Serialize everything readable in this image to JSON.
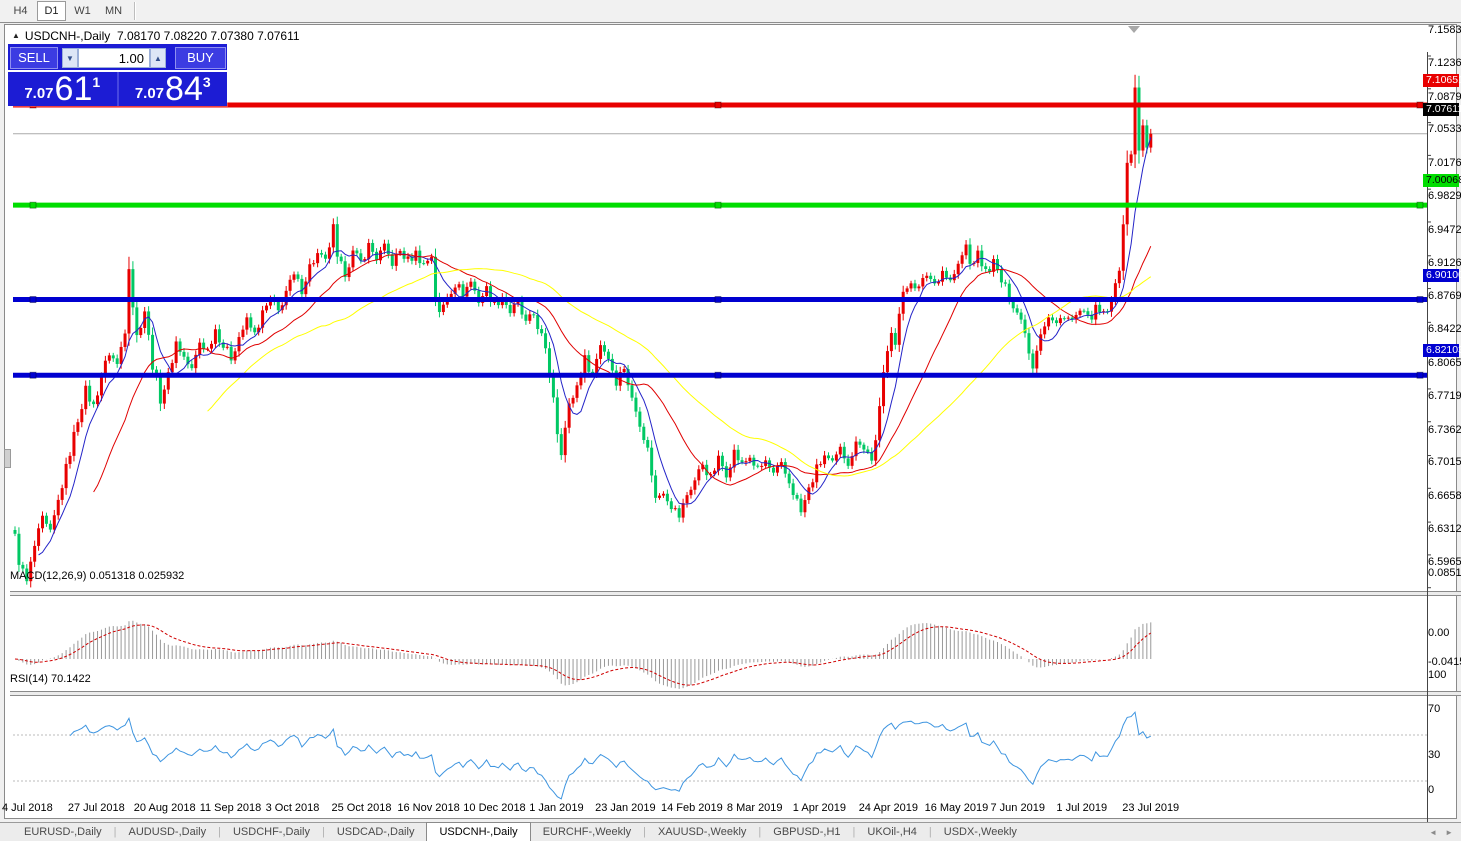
{
  "toolbar": {
    "periods": [
      {
        "label": "H4",
        "active": false
      },
      {
        "label": "D1",
        "active": true
      },
      {
        "label": "W1",
        "active": false
      },
      {
        "label": "MN",
        "active": false
      }
    ]
  },
  "chart": {
    "title": {
      "symbol": "USDCNH-,Daily",
      "quotes": "7.08170 7.08220 7.07380 7.07611"
    },
    "trade_panel": {
      "sell_label": "SELL",
      "buy_label": "BUY",
      "volume": "1.00",
      "sell_price_small": "7.07",
      "sell_price_big": "61",
      "sell_price_sup": "1",
      "buy_price_small": "7.07",
      "buy_price_big": "84",
      "buy_price_sup": "3"
    }
  },
  "chart_data": {
    "type": "candlestick",
    "symbol": "USDCNH",
    "timeframe": "Daily",
    "current_bar_ohlc": {
      "open": 7.0817,
      "high": 7.0822,
      "low": 7.0738,
      "close": 7.07611
    },
    "price_axis_ticks": [
      "7.15830",
      "7.12365",
      "7.08795",
      "7.05330",
      "7.01760",
      "6.98295",
      "6.94725",
      "6.91260",
      "6.87690",
      "6.84225",
      "6.80655",
      "6.77190",
      "6.73620",
      "6.70155",
      "6.66585",
      "6.63120",
      "6.59655"
    ],
    "hlines": [
      {
        "value": 7.10651,
        "label": "7.10651",
        "color": "#e80000",
        "label_fg": "#ffffff",
        "width": 5
      },
      {
        "value": 7.00068,
        "label": "7.00068",
        "color": "#00dd00",
        "label_fg": "#000000",
        "width": 5
      },
      {
        "value": 6.901,
        "label": "6.90100",
        "color": "#0000d0",
        "label_fg": "#ffffff",
        "width": 5
      },
      {
        "value": 6.82103,
        "label": "6.82103",
        "color": "#0000d0",
        "label_fg": "#ffffff",
        "width": 5
      }
    ],
    "current_price": {
      "value": 7.07611,
      "label": "7.07611",
      "line_color": "#aaaaaa",
      "chip_bg": "#000000",
      "chip_fg": "#ffffff"
    },
    "date_axis": [
      "4 Jul 2018",
      "27 Jul 2018",
      "20 Aug 2018",
      "11 Sep 2018",
      "3 Oct 2018",
      "25 Oct 2018",
      "16 Nov 2018",
      "10 Dec 2018",
      "1 Jan 2019",
      "23 Jan 2019",
      "14 Feb 2019",
      "8 Mar 2019",
      "1 Apr 2019",
      "24 Apr 2019",
      "16 May 2019",
      "7 Jun 2019",
      "1 Jul 2019",
      "23 Jul 2019"
    ],
    "bars_total": 290,
    "price_path_anchors": [
      [
        0,
        6.65
      ],
      [
        1,
        6.625
      ],
      [
        3,
        6.602
      ],
      [
        5,
        6.64
      ],
      [
        7,
        6.668
      ],
      [
        9,
        6.653
      ],
      [
        12,
        6.705
      ],
      [
        14,
        6.74
      ],
      [
        16,
        6.775
      ],
      [
        18,
        6.805
      ],
      [
        20,
        6.788
      ],
      [
        22,
        6.82
      ],
      [
        24,
        6.845
      ],
      [
        26,
        6.832
      ],
      [
        28,
        6.87
      ],
      [
        29,
        6.938
      ],
      [
        30,
        6.895
      ],
      [
        31,
        6.862
      ],
      [
        33,
        6.89
      ],
      [
        35,
        6.832
      ],
      [
        37,
        6.796
      ],
      [
        39,
        6.82
      ],
      [
        41,
        6.856
      ],
      [
        43,
        6.84
      ],
      [
        45,
        6.826
      ],
      [
        47,
        6.856
      ],
      [
        49,
        6.848
      ],
      [
        51,
        6.87
      ],
      [
        53,
        6.852
      ],
      [
        55,
        6.84
      ],
      [
        57,
        6.862
      ],
      [
        59,
        6.878
      ],
      [
        61,
        6.864
      ],
      [
        63,
        6.886
      ],
      [
        65,
        6.9
      ],
      [
        67,
        6.888
      ],
      [
        69,
        6.91
      ],
      [
        71,
        6.925
      ],
      [
        73,
        6.912
      ],
      [
        75,
        6.936
      ],
      [
        77,
        6.948
      ],
      [
        79,
        6.94
      ],
      [
        81,
        6.976
      ],
      [
        82,
        6.942
      ],
      [
        84,
        6.93
      ],
      [
        86,
        6.95
      ],
      [
        88,
        6.94
      ],
      [
        90,
        6.958
      ],
      [
        92,
        6.945
      ],
      [
        94,
        6.955
      ],
      [
        96,
        6.94
      ],
      [
        98,
        6.952
      ],
      [
        100,
        6.942
      ],
      [
        102,
        6.95
      ],
      [
        104,
        6.938
      ],
      [
        106,
        6.948
      ],
      [
        107,
        6.905
      ],
      [
        108,
        6.885
      ],
      [
        110,
        6.905
      ],
      [
        112,
        6.918
      ],
      [
        114,
        6.908
      ],
      [
        116,
        6.92
      ],
      [
        118,
        6.9
      ],
      [
        120,
        6.912
      ],
      [
        122,
        6.895
      ],
      [
        124,
        6.905
      ],
      [
        126,
        6.888
      ],
      [
        128,
        6.896
      ],
      [
        130,
        6.875
      ],
      [
        132,
        6.885
      ],
      [
        134,
        6.862
      ],
      [
        135,
        6.845
      ],
      [
        137,
        6.8
      ],
      [
        138,
        6.762
      ],
      [
        139,
        6.742
      ],
      [
        141,
        6.788
      ],
      [
        143,
        6.81
      ],
      [
        145,
        6.838
      ],
      [
        147,
        6.822
      ],
      [
        149,
        6.855
      ],
      [
        151,
        6.84
      ],
      [
        153,
        6.815
      ],
      [
        155,
        6.83
      ],
      [
        157,
        6.795
      ],
      [
        159,
        6.772
      ],
      [
        161,
        6.742
      ],
      [
        162,
        6.718
      ],
      [
        163,
        6.69
      ],
      [
        165,
        6.7
      ],
      [
        167,
        6.684
      ],
      [
        169,
        6.672
      ],
      [
        171,
        6.695
      ],
      [
        173,
        6.71
      ],
      [
        175,
        6.728
      ],
      [
        177,
        6.712
      ],
      [
        179,
        6.732
      ],
      [
        181,
        6.718
      ],
      [
        183,
        6.74
      ],
      [
        185,
        6.726
      ],
      [
        187,
        6.735
      ],
      [
        189,
        6.72
      ],
      [
        191,
        6.73
      ],
      [
        193,
        6.715
      ],
      [
        195,
        6.725
      ],
      [
        197,
        6.708
      ],
      [
        199,
        6.688
      ],
      [
        200,
        6.676
      ],
      [
        202,
        6.7
      ],
      [
        204,
        6.722
      ],
      [
        206,
        6.736
      ],
      [
        208,
        6.726
      ],
      [
        210,
        6.742
      ],
      [
        212,
        6.73
      ],
      [
        214,
        6.748
      ],
      [
        215,
        6.752
      ],
      [
        217,
        6.74
      ],
      [
        218,
        6.73
      ],
      [
        219,
        6.755
      ],
      [
        220,
        6.785
      ],
      [
        221,
        6.82
      ],
      [
        222,
        6.845
      ],
      [
        223,
        6.87
      ],
      [
        224,
        6.858
      ],
      [
        225,
        6.886
      ],
      [
        226,
        6.905
      ],
      [
        228,
        6.922
      ],
      [
        230,
        6.912
      ],
      [
        232,
        6.928
      ],
      [
        234,
        6.918
      ],
      [
        236,
        6.932
      ],
      [
        238,
        6.92
      ],
      [
        240,
        6.936
      ],
      [
        242,
        6.958
      ],
      [
        243,
        6.938
      ],
      [
        245,
        6.948
      ],
      [
        247,
        6.93
      ],
      [
        249,
        6.94
      ],
      [
        251,
        6.92
      ],
      [
        253,
        6.905
      ],
      [
        255,
        6.888
      ],
      [
        257,
        6.87
      ],
      [
        258,
        6.845
      ],
      [
        259,
        6.832
      ],
      [
        261,
        6.868
      ],
      [
        263,
        6.882
      ],
      [
        265,
        6.874
      ],
      [
        267,
        6.886
      ],
      [
        269,
        6.878
      ],
      [
        271,
        6.888
      ],
      [
        273,
        6.88
      ],
      [
        275,
        6.89
      ],
      [
        277,
        6.884
      ],
      [
        279,
        6.896
      ],
      [
        280,
        6.916
      ],
      [
        281,
        6.936
      ],
      [
        282,
        6.985
      ],
      [
        283,
        7.04
      ],
      [
        284,
        7.055
      ],
      [
        285,
        7.125
      ],
      [
        286,
        7.058
      ],
      [
        287,
        7.085
      ],
      [
        288,
        7.062
      ],
      [
        289,
        7.076
      ]
    ],
    "candle_colors": {
      "up": "#e80000",
      "down": "#00c864"
    },
    "moving_averages": [
      {
        "period": 7,
        "color": "#2424c8"
      },
      {
        "period": 21,
        "color": "#e00000"
      },
      {
        "period": 50,
        "color": "#ffff00"
      }
    ],
    "macd": {
      "label": "MACD(12,26,9)",
      "values": "0.051318 0.025932",
      "fast": 12,
      "slow": 26,
      "signal": 9,
      "axis_ticks": [
        {
          "value": 0.085164,
          "label": "0.085164"
        },
        {
          "value": 0,
          "label": "0.00"
        },
        {
          "value": -0.04159,
          "label": "-0.04159"
        }
      ],
      "hist_color": "#999999",
      "signal_color": "#d00000"
    },
    "rsi": {
      "label": "RSI(14)",
      "value": "70.1422",
      "period": 14,
      "levels": [
        70,
        30
      ],
      "axis_ticks": [
        {
          "value": 100,
          "label": "100"
        },
        {
          "value": 70,
          "label": "70"
        },
        {
          "value": 30,
          "label": "30"
        },
        {
          "value": 0,
          "label": "0"
        }
      ],
      "line_color": "#3e95e0"
    }
  },
  "tabbar": {
    "tabs": [
      {
        "label": "EURUSD-,Daily",
        "active": false
      },
      {
        "label": "AUDUSD-,Daily",
        "active": false
      },
      {
        "label": "USDCHF-,Daily",
        "active": false
      },
      {
        "label": "USDCAD-,Daily",
        "active": false
      },
      {
        "label": "USDCNH-,Daily",
        "active": true
      },
      {
        "label": "EURCHF-,Weekly",
        "active": false
      },
      {
        "label": "XAUUSD-,Weekly",
        "active": false
      },
      {
        "label": "GBPUSD-,H1",
        "active": false
      },
      {
        "label": "UKOil-,H4",
        "active": false
      },
      {
        "label": "USDX-,Weekly",
        "active": false
      }
    ],
    "scroll_left": "◄",
    "scroll_right": "►"
  }
}
